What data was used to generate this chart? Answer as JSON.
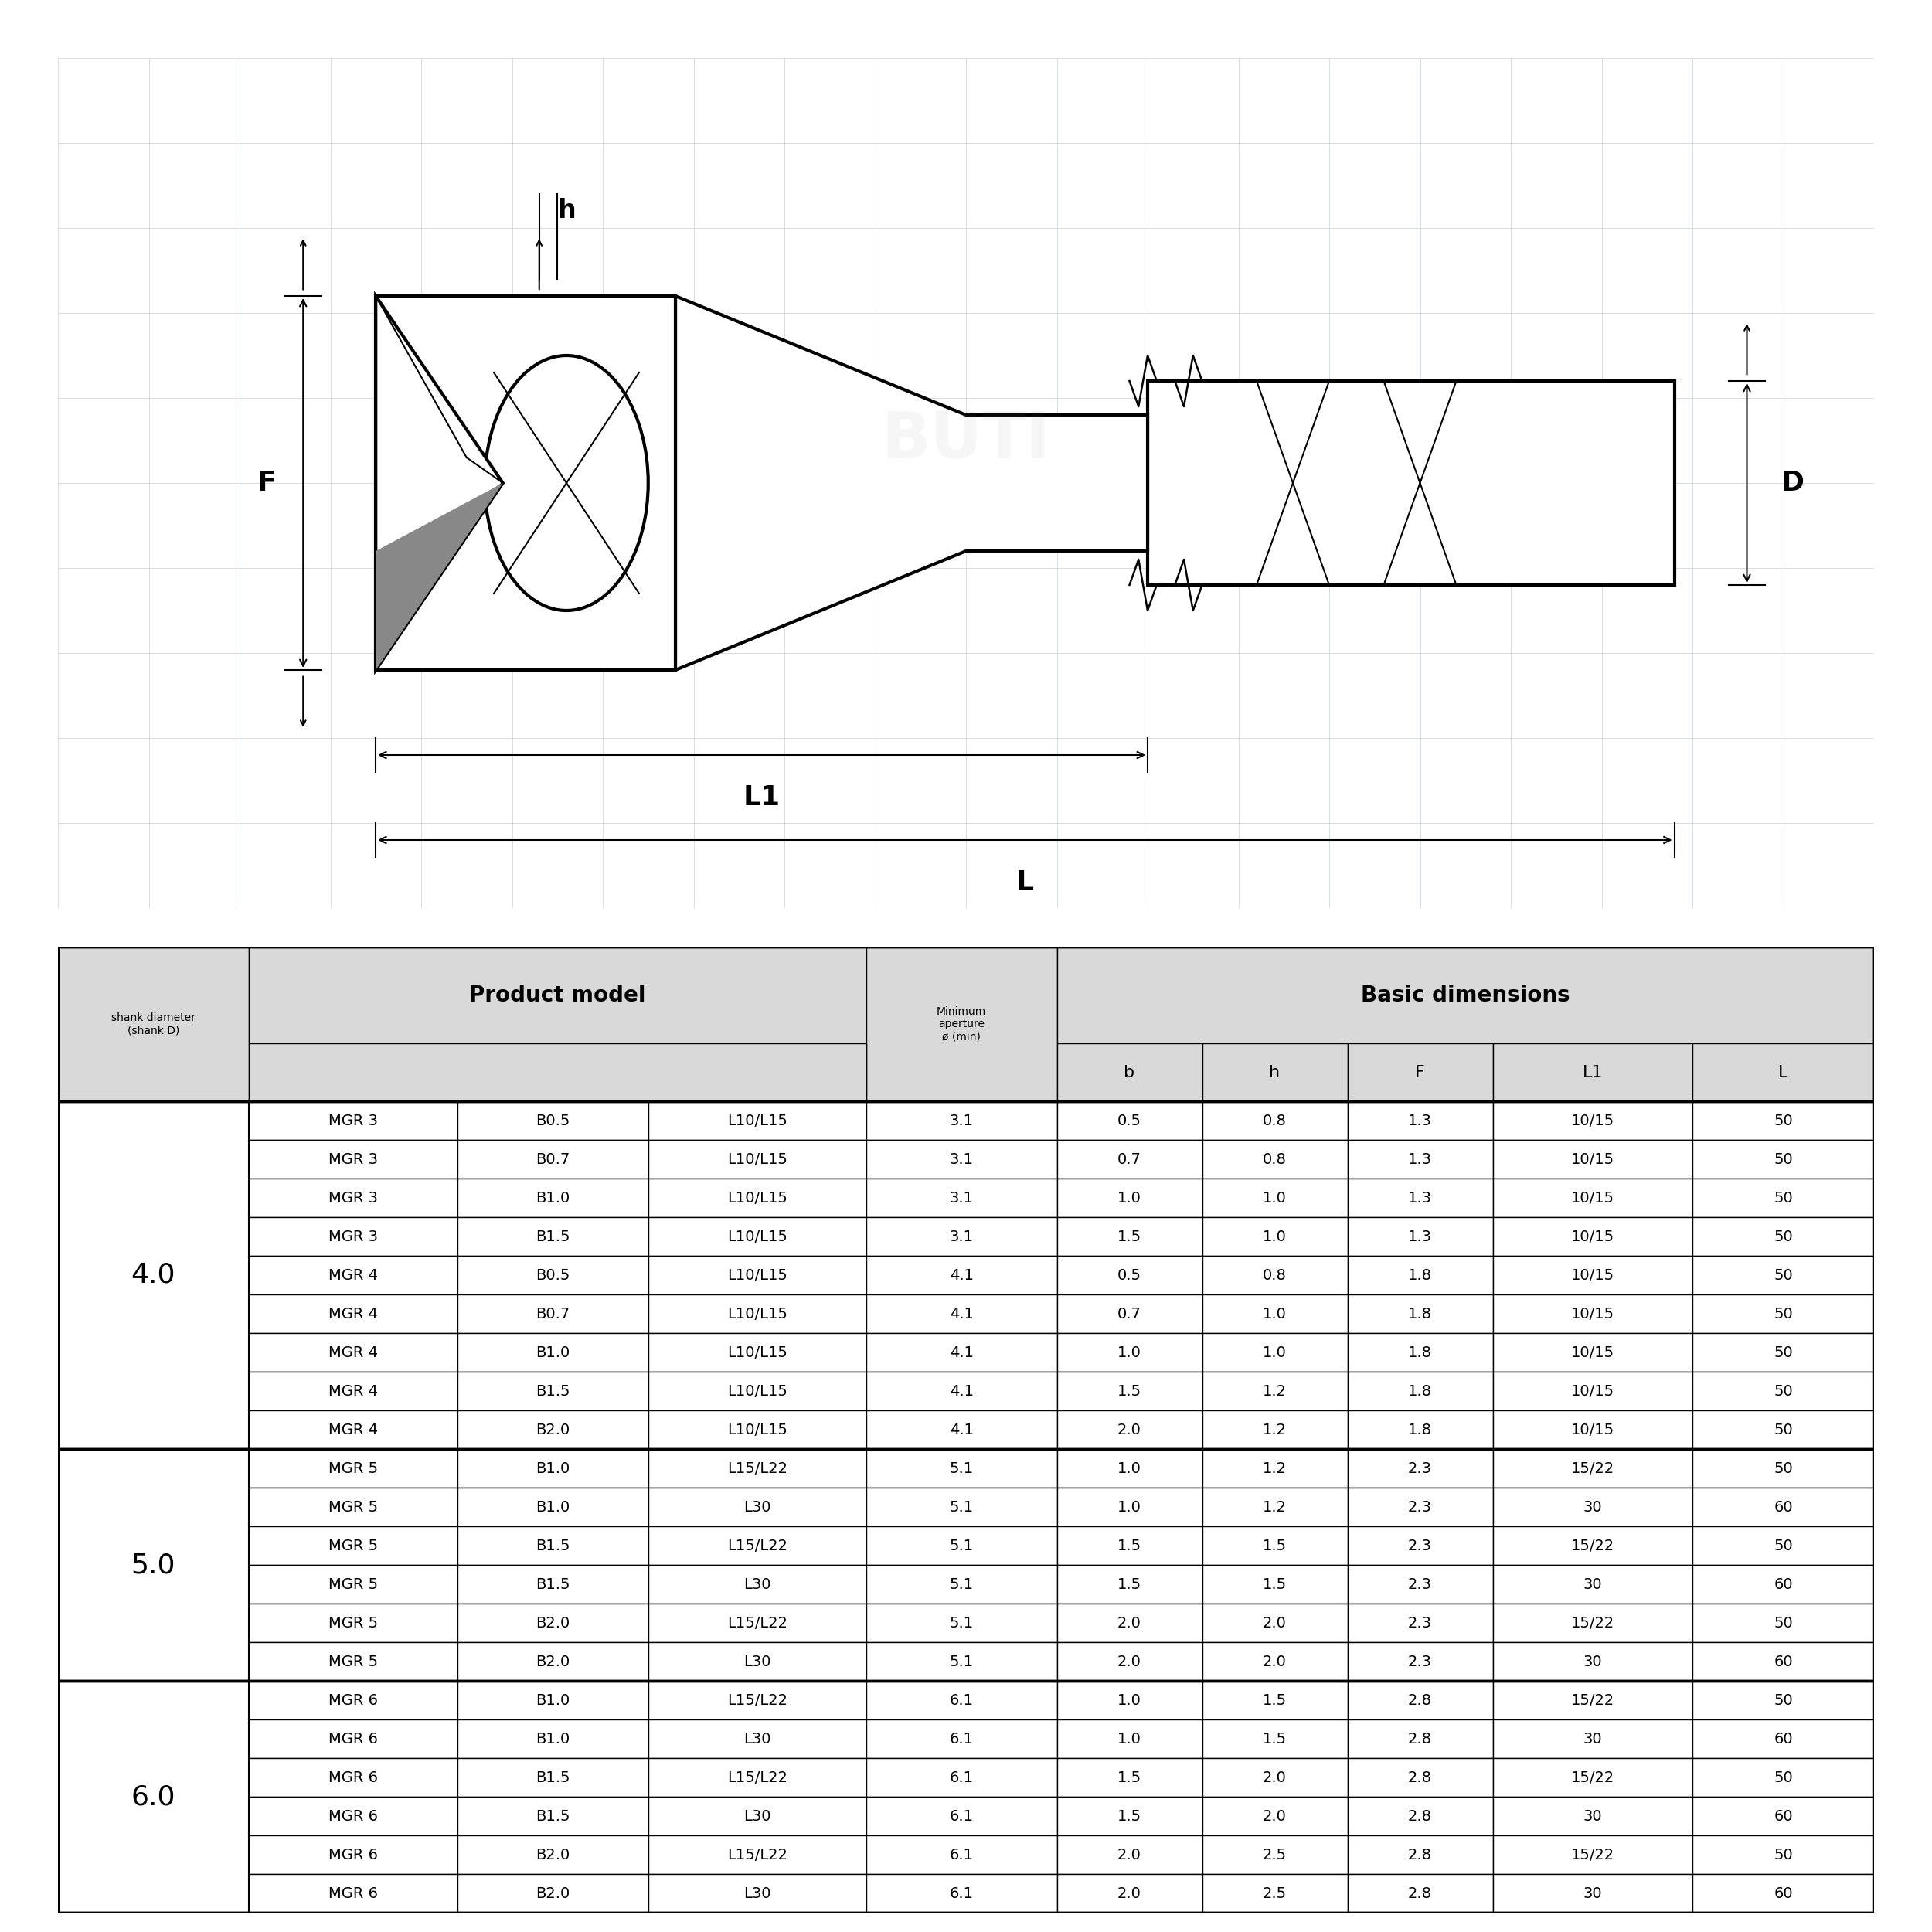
{
  "rows": [
    [
      "4.0",
      "MGR 3",
      "B0.5",
      "L10/L15",
      "3.1",
      "0.5",
      "0.8",
      "1.3",
      "10/15",
      "50"
    ],
    [
      "",
      "MGR 3",
      "B0.7",
      "L10/L15",
      "3.1",
      "0.7",
      "0.8",
      "1.3",
      "10/15",
      "50"
    ],
    [
      "",
      "MGR 3",
      "B1.0",
      "L10/L15",
      "3.1",
      "1.0",
      "1.0",
      "1.3",
      "10/15",
      "50"
    ],
    [
      "",
      "MGR 3",
      "B1.5",
      "L10/L15",
      "3.1",
      "1.5",
      "1.0",
      "1.3",
      "10/15",
      "50"
    ],
    [
      "",
      "MGR 4",
      "B0.5",
      "L10/L15",
      "4.1",
      "0.5",
      "0.8",
      "1.8",
      "10/15",
      "50"
    ],
    [
      "",
      "MGR 4",
      "B0.7",
      "L10/L15",
      "4.1",
      "0.7",
      "1.0",
      "1.8",
      "10/15",
      "50"
    ],
    [
      "",
      "MGR 4",
      "B1.0",
      "L10/L15",
      "4.1",
      "1.0",
      "1.0",
      "1.8",
      "10/15",
      "50"
    ],
    [
      "",
      "MGR 4",
      "B1.5",
      "L10/L15",
      "4.1",
      "1.5",
      "1.2",
      "1.8",
      "10/15",
      "50"
    ],
    [
      "",
      "MGR 4",
      "B2.0",
      "L10/L15",
      "4.1",
      "2.0",
      "1.2",
      "1.8",
      "10/15",
      "50"
    ],
    [
      "5.0",
      "MGR 5",
      "B1.0",
      "L15/L22",
      "5.1",
      "1.0",
      "1.2",
      "2.3",
      "15/22",
      "50"
    ],
    [
      "",
      "MGR 5",
      "B1.0",
      "L30",
      "5.1",
      "1.0",
      "1.2",
      "2.3",
      "30",
      "60"
    ],
    [
      "",
      "MGR 5",
      "B1.5",
      "L15/L22",
      "5.1",
      "1.5",
      "1.5",
      "2.3",
      "15/22",
      "50"
    ],
    [
      "",
      "MGR 5",
      "B1.5",
      "L30",
      "5.1",
      "1.5",
      "1.5",
      "2.3",
      "30",
      "60"
    ],
    [
      "",
      "MGR 5",
      "B2.0",
      "L15/L22",
      "5.1",
      "2.0",
      "2.0",
      "2.3",
      "15/22",
      "50"
    ],
    [
      "",
      "MGR 5",
      "B2.0",
      "L30",
      "5.1",
      "2.0",
      "2.0",
      "2.3",
      "30",
      "60"
    ],
    [
      "6.0",
      "MGR 6",
      "B1.0",
      "L15/L22",
      "6.1",
      "1.0",
      "1.5",
      "2.8",
      "15/22",
      "50"
    ],
    [
      "",
      "MGR 6",
      "B1.0",
      "L30",
      "6.1",
      "1.0",
      "1.5",
      "2.8",
      "30",
      "60"
    ],
    [
      "",
      "MGR 6",
      "B1.5",
      "L15/L22",
      "6.1",
      "1.5",
      "2.0",
      "2.8",
      "15/22",
      "50"
    ],
    [
      "",
      "MGR 6",
      "B1.5",
      "L30",
      "6.1",
      "1.5",
      "2.0",
      "2.8",
      "30",
      "60"
    ],
    [
      "",
      "MGR 6",
      "B2.0",
      "L15/L22",
      "6.1",
      "2.0",
      "2.5",
      "2.8",
      "15/22",
      "50"
    ],
    [
      "",
      "MGR 6",
      "B2.0",
      "L30",
      "6.1",
      "2.0",
      "2.5",
      "2.8",
      "30",
      "60"
    ]
  ],
  "shank_groups": [
    {
      "label": "4.0",
      "start": 0,
      "end": 8
    },
    {
      "label": "5.0",
      "start": 9,
      "end": 14
    },
    {
      "label": "6.0",
      "start": 15,
      "end": 20
    }
  ],
  "bg_color_header": "#d9d9d9",
  "bg_color_white": "#ffffff",
  "fig_bg": "#ffffff",
  "draw_bg": "#eef2f8",
  "draw_grid": "#c8d0dc",
  "lw_main": 3.0,
  "lw_thin": 1.5,
  "lw_dim": 1.5
}
